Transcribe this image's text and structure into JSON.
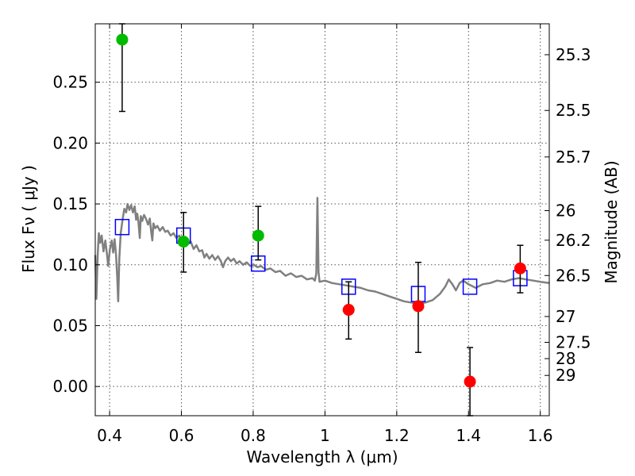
{
  "chart_data": {
    "type": "scatter",
    "xlabel": "Wavelength  λ (μm)",
    "ylabel": "Flux  Fν  ( μJy )",
    "y2label": "Magnitude (AB)",
    "xlim": [
      0.36,
      1.625
    ],
    "ylim": [
      -0.024,
      0.298
    ],
    "grid": true,
    "x_ticks": [
      0.4,
      0.6,
      0.8,
      1.0,
      1.2,
      1.4,
      1.6
    ],
    "x_tick_labels": [
      "0.4",
      "0.6",
      "0.8",
      "1",
      "1.2",
      "1.4",
      "1.6"
    ],
    "y_ticks": [
      0.0,
      0.05,
      0.1,
      0.15,
      0.2,
      0.25
    ],
    "y_tick_labels": [
      "0.00",
      "0.05",
      "0.10",
      "0.15",
      "0.20",
      "0.25"
    ],
    "mag_ticks": [
      {
        "flux": 0.2726,
        "label": "25.3"
      },
      {
        "flux": 0.2268,
        "label": "25.5"
      },
      {
        "flux": 0.1886,
        "label": "25.7"
      },
      {
        "flux": 0.1445,
        "label": "26"
      },
      {
        "flux": 0.1202,
        "label": "26.2"
      },
      {
        "flux": 0.0912,
        "label": "26.5"
      },
      {
        "flux": 0.0575,
        "label": "27"
      },
      {
        "flux": 0.0363,
        "label": "27.5"
      },
      {
        "flux": 0.0229,
        "label": "28"
      },
      {
        "flux": 0.0091,
        "label": "29"
      }
    ],
    "colors": {
      "model": "#808080",
      "detected": "#00bb00",
      "faint": "#ff0000",
      "synthetic": "#0000ff",
      "errorbar": "#000000"
    },
    "series": [
      {
        "kind": "detected",
        "points": [
          {
            "x": 0.435,
            "y": 0.285,
            "ylo": 0.226,
            "yhi": 0.298
          },
          {
            "x": 0.606,
            "y": 0.119,
            "ylo": 0.094,
            "yhi": 0.143
          },
          {
            "x": 0.814,
            "y": 0.124,
            "ylo": 0.104,
            "yhi": 0.148
          }
        ]
      },
      {
        "kind": "faint",
        "points": [
          {
            "x": 1.066,
            "y": 0.063,
            "ylo": 0.039,
            "yhi": 0.086
          },
          {
            "x": 1.26,
            "y": 0.066,
            "ylo": 0.028,
            "yhi": 0.102
          },
          {
            "x": 1.404,
            "y": 0.004,
            "ylo": -0.024,
            "yhi": 0.032
          },
          {
            "x": 1.544,
            "y": 0.097,
            "ylo": 0.077,
            "yhi": 0.116
          }
        ]
      },
      {
        "kind": "synthetic",
        "points": [
          {
            "x": 0.435,
            "y": 0.131
          },
          {
            "x": 0.606,
            "y": 0.124
          },
          {
            "x": 0.814,
            "y": 0.101
          },
          {
            "x": 1.066,
            "y": 0.082
          },
          {
            "x": 1.26,
            "y": 0.076
          },
          {
            "x": 1.404,
            "y": 0.082
          },
          {
            "x": 1.544,
            "y": 0.089
          }
        ]
      }
    ],
    "model_spectrum": [
      [
        0.36,
        0.108
      ],
      [
        0.363,
        0.072
      ],
      [
        0.367,
        0.11
      ],
      [
        0.37,
        0.126
      ],
      [
        0.374,
        0.118
      ],
      [
        0.378,
        0.124
      ],
      [
        0.383,
        0.111
      ],
      [
        0.388,
        0.12
      ],
      [
        0.393,
        0.108
      ],
      [
        0.396,
        0.099
      ],
      [
        0.401,
        0.113
      ],
      [
        0.406,
        0.12
      ],
      [
        0.41,
        0.11
      ],
      [
        0.414,
        0.121
      ],
      [
        0.418,
        0.108
      ],
      [
        0.421,
        0.091
      ],
      [
        0.424,
        0.07
      ],
      [
        0.427,
        0.105
      ],
      [
        0.431,
        0.126
      ],
      [
        0.436,
        0.137
      ],
      [
        0.441,
        0.146
      ],
      [
        0.446,
        0.143
      ],
      [
        0.45,
        0.15
      ],
      [
        0.455,
        0.145
      ],
      [
        0.46,
        0.149
      ],
      [
        0.465,
        0.143
      ],
      [
        0.47,
        0.148
      ],
      [
        0.474,
        0.137
      ],
      [
        0.477,
        0.142
      ],
      [
        0.48,
        0.136
      ],
      [
        0.484,
        0.122
      ],
      [
        0.487,
        0.14
      ],
      [
        0.491,
        0.136
      ],
      [
        0.496,
        0.141
      ],
      [
        0.501,
        0.138
      ],
      [
        0.507,
        0.133
      ],
      [
        0.512,
        0.138
      ],
      [
        0.516,
        0.127
      ],
      [
        0.519,
        0.12
      ],
      [
        0.522,
        0.134
      ],
      [
        0.527,
        0.13
      ],
      [
        0.533,
        0.132
      ],
      [
        0.54,
        0.128
      ],
      [
        0.548,
        0.131
      ],
      [
        0.555,
        0.127
      ],
      [
        0.562,
        0.128
      ],
      [
        0.57,
        0.124
      ],
      [
        0.578,
        0.126
      ],
      [
        0.586,
        0.122
      ],
      [
        0.594,
        0.124
      ],
      [
        0.602,
        0.119
      ],
      [
        0.61,
        0.122
      ],
      [
        0.618,
        0.117
      ],
      [
        0.626,
        0.119
      ],
      [
        0.634,
        0.113
      ],
      [
        0.642,
        0.116
      ],
      [
        0.65,
        0.111
      ],
      [
        0.658,
        0.112
      ],
      [
        0.664,
        0.106
      ],
      [
        0.67,
        0.109
      ],
      [
        0.678,
        0.105
      ],
      [
        0.686,
        0.108
      ],
      [
        0.694,
        0.104
      ],
      [
        0.702,
        0.107
      ],
      [
        0.71,
        0.103
      ],
      [
        0.716,
        0.098
      ],
      [
        0.722,
        0.103
      ],
      [
        0.73,
        0.106
      ],
      [
        0.738,
        0.103
      ],
      [
        0.746,
        0.105
      ],
      [
        0.754,
        0.101
      ],
      [
        0.762,
        0.103
      ],
      [
        0.772,
        0.1
      ],
      [
        0.782,
        0.102
      ],
      [
        0.792,
        0.099
      ],
      [
        0.802,
        0.1
      ],
      [
        0.812,
        0.098
      ],
      [
        0.822,
        0.099
      ],
      [
        0.835,
        0.096
      ],
      [
        0.848,
        0.097
      ],
      [
        0.862,
        0.094
      ],
      [
        0.875,
        0.095
      ],
      [
        0.89,
        0.091
      ],
      [
        0.905,
        0.093
      ],
      [
        0.92,
        0.09
      ],
      [
        0.935,
        0.091
      ],
      [
        0.95,
        0.088
      ],
      [
        0.965,
        0.089
      ],
      [
        0.972,
        0.087
      ],
      [
        0.976,
        0.093
      ],
      [
        0.979,
        0.155
      ],
      [
        0.982,
        0.094
      ],
      [
        0.985,
        0.086
      ],
      [
        1.0,
        0.087
      ],
      [
        1.02,
        0.085
      ],
      [
        1.04,
        0.084
      ],
      [
        1.06,
        0.083
      ],
      [
        1.08,
        0.082
      ],
      [
        1.1,
        0.081
      ],
      [
        1.12,
        0.079
      ],
      [
        1.14,
        0.078
      ],
      [
        1.16,
        0.076
      ],
      [
        1.18,
        0.074
      ],
      [
        1.2,
        0.072
      ],
      [
        1.22,
        0.07
      ],
      [
        1.24,
        0.069
      ],
      [
        1.26,
        0.068
      ],
      [
        1.28,
        0.069
      ],
      [
        1.3,
        0.071
      ],
      [
        1.32,
        0.076
      ],
      [
        1.335,
        0.082
      ],
      [
        1.345,
        0.088
      ],
      [
        1.355,
        0.084
      ],
      [
        1.365,
        0.079
      ],
      [
        1.375,
        0.085
      ],
      [
        1.385,
        0.087
      ],
      [
        1.4,
        0.084
      ],
      [
        1.42,
        0.081
      ],
      [
        1.44,
        0.084
      ],
      [
        1.46,
        0.085
      ],
      [
        1.48,
        0.087
      ],
      [
        1.5,
        0.086
      ],
      [
        1.52,
        0.088
      ],
      [
        1.54,
        0.089
      ],
      [
        1.56,
        0.088
      ],
      [
        1.58,
        0.087
      ],
      [
        1.6,
        0.086
      ],
      [
        1.625,
        0.085
      ]
    ]
  }
}
